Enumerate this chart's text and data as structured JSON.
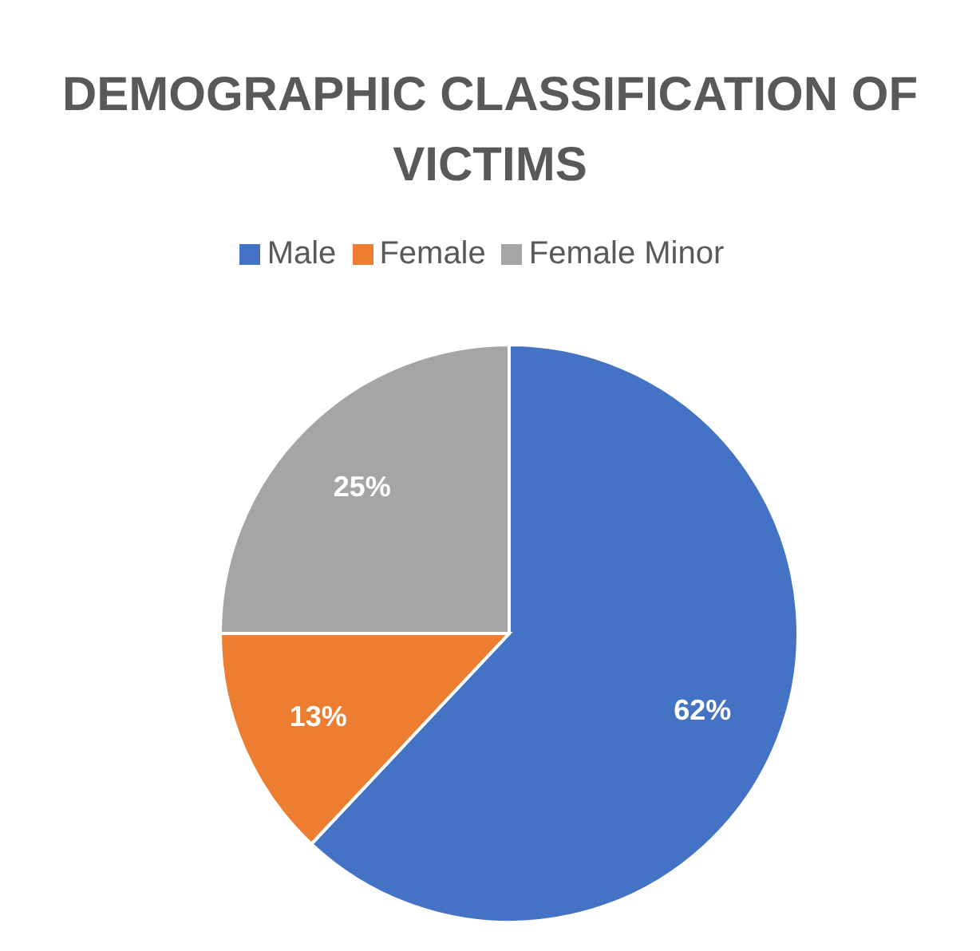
{
  "chart_data": {
    "type": "pie",
    "title": "DEMOGRAPHIC CLASSIFICATION OF VICTIMS",
    "categories": [
      "Male",
      "Female",
      "Female Minor"
    ],
    "values": [
      62,
      13,
      25
    ],
    "value_labels": [
      "62%",
      "13%",
      "25%"
    ],
    "colors": [
      "#4472c4",
      "#ed7d31",
      "#a5a5a5"
    ],
    "legend": "top"
  }
}
